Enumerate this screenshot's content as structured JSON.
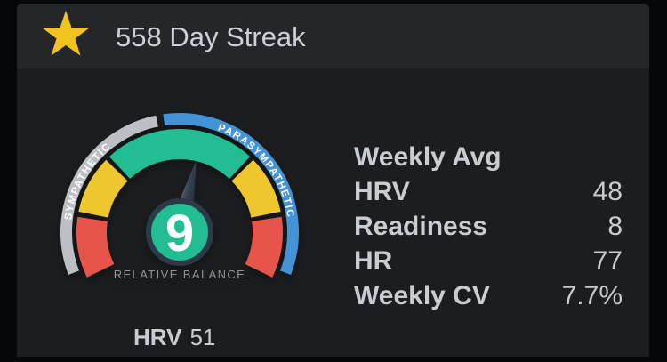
{
  "header": {
    "title": "558 Day Streak",
    "star_color": "#f1c31e"
  },
  "gauge": {
    "left_band_label": "SYMPATHETIC",
    "right_band_label": "PARASYMPATHETIC",
    "center_value": "9",
    "caption": "RELATIVE BALANCE",
    "colors": {
      "teal": "#22bd93",
      "yellow": "#eec72f",
      "red": "#e6554a",
      "gray_band": "#bcc0c4",
      "blue_band": "#4493d6",
      "needle_light": "#5d6d7e",
      "needle_mid": "#34404e",
      "needle_dark": "#212c38",
      "center_ring": "#2c3946",
      "band_label_color": "#ffffff",
      "caption_color": "#8e9398",
      "value_color": "#ffffff"
    }
  },
  "current": {
    "label": "HRV",
    "value": "51"
  },
  "weekly": {
    "title": "Weekly Avg",
    "rows": [
      {
        "label": "HRV",
        "value": "48"
      },
      {
        "label": "Readiness",
        "value": "8"
      },
      {
        "label": "HR",
        "value": "77"
      },
      {
        "label": "Weekly CV",
        "value": "7.7%"
      }
    ]
  }
}
